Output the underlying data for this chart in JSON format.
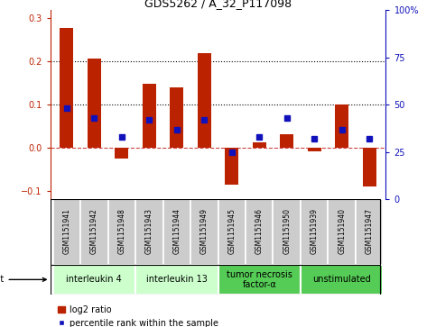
{
  "title": "GDS5262 / A_32_P117098",
  "samples": [
    "GSM1151941",
    "GSM1151942",
    "GSM1151948",
    "GSM1151943",
    "GSM1151944",
    "GSM1151949",
    "GSM1151945",
    "GSM1151946",
    "GSM1151950",
    "GSM1151939",
    "GSM1151940",
    "GSM1151947"
  ],
  "log2_ratio": [
    0.278,
    0.207,
    -0.025,
    0.148,
    0.14,
    0.22,
    -0.085,
    0.012,
    0.032,
    -0.008,
    0.1,
    -0.09
  ],
  "percentile_rank_pct": [
    48,
    43,
    33,
    42,
    37,
    42,
    25,
    33,
    43,
    32,
    37,
    32
  ],
  "agents": [
    {
      "label": "interleukin 4",
      "start": 0,
      "end": 3,
      "color": "#ccffcc"
    },
    {
      "label": "interleukin 13",
      "start": 3,
      "end": 6,
      "color": "#ccffcc"
    },
    {
      "label": "tumor necrosis\nfactor-α",
      "start": 6,
      "end": 9,
      "color": "#55cc55"
    },
    {
      "label": "unstimulated",
      "start": 9,
      "end": 12,
      "color": "#55cc55"
    }
  ],
  "ylim_left": [
    -0.12,
    0.32
  ],
  "ylim_right": [
    0,
    100
  ],
  "yticks_left": [
    -0.1,
    0.0,
    0.1,
    0.2,
    0.3
  ],
  "yticks_right": [
    0,
    25,
    50,
    75,
    100
  ],
  "ytick_labels_right": [
    "0",
    "25",
    "50",
    "75",
    "100%"
  ],
  "hlines": [
    0.1,
    0.2
  ],
  "bar_color": "#bb2200",
  "dot_color": "#1111bb",
  "zero_line_color": "#cc4444",
  "bar_width": 0.5,
  "sample_bg_color": "#cccccc",
  "legend_bar_label": "log2 ratio",
  "legend_dot_label": "percentile rank within the sample",
  "title_fontsize": 9,
  "tick_fontsize": 7,
  "sample_fontsize": 5.5,
  "agent_fontsize": 7,
  "legend_fontsize": 7
}
